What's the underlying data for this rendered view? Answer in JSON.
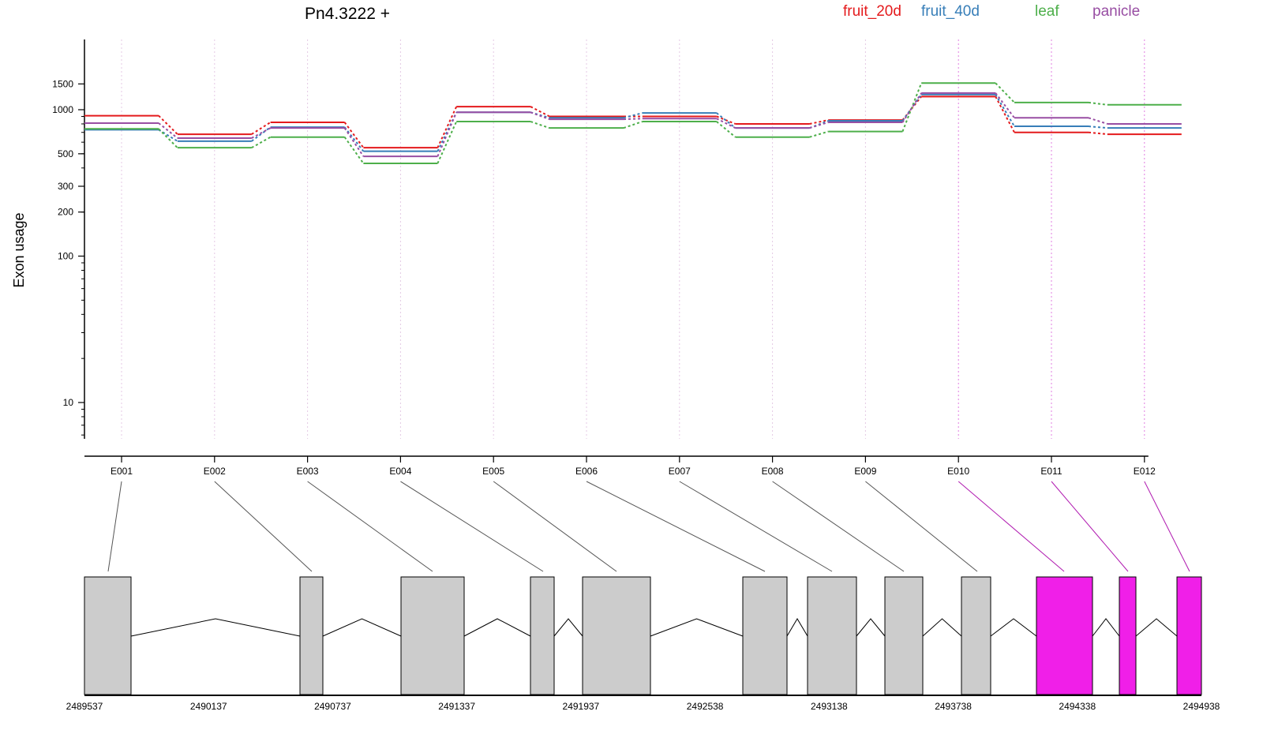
{
  "chart_data": {
    "type": "line",
    "title": "Pn4.3222 +",
    "ylabel": "Exon usage",
    "xlabel": "",
    "yscale": "log",
    "ylim": [
      5,
      1700
    ],
    "yticks": [
      10,
      100,
      200,
      300,
      500,
      1000,
      1500
    ],
    "categories": [
      "E001",
      "E002",
      "E003",
      "E004",
      "E005",
      "E006",
      "E007",
      "E008",
      "E009",
      "E010",
      "E011",
      "E012"
    ],
    "highlighted_exons": [
      "E010",
      "E011",
      "E012"
    ],
    "series": [
      {
        "name": "fruit_20d",
        "color": "#e41a1c",
        "values": [
          910,
          680,
          820,
          550,
          1050,
          900,
          900,
          800,
          850,
          1230,
          700,
          680
        ]
      },
      {
        "name": "fruit_40d",
        "color": "#377eb8",
        "values": [
          730,
          610,
          760,
          520,
          960,
          880,
          950,
          750,
          840,
          1270,
          770,
          750
        ]
      },
      {
        "name": "leaf",
        "color": "#4daf4a",
        "values": [
          740,
          550,
          650,
          430,
          830,
          750,
          830,
          650,
          710,
          1520,
          1120,
          1080
        ]
      },
      {
        "name": "panicle",
        "color": "#984ea3",
        "values": [
          810,
          640,
          750,
          480,
          960,
          860,
          870,
          750,
          820,
          1300,
          880,
          800
        ]
      }
    ],
    "gene_model": {
      "coordinate_ticks": [
        "2489537",
        "2490137",
        "2490737",
        "2491337",
        "2491937",
        "2492538",
        "2493138",
        "2493738",
        "2494338",
        "2494938"
      ],
      "exon_color": "#cccccc",
      "highlight_color": "#f01fe8"
    }
  }
}
